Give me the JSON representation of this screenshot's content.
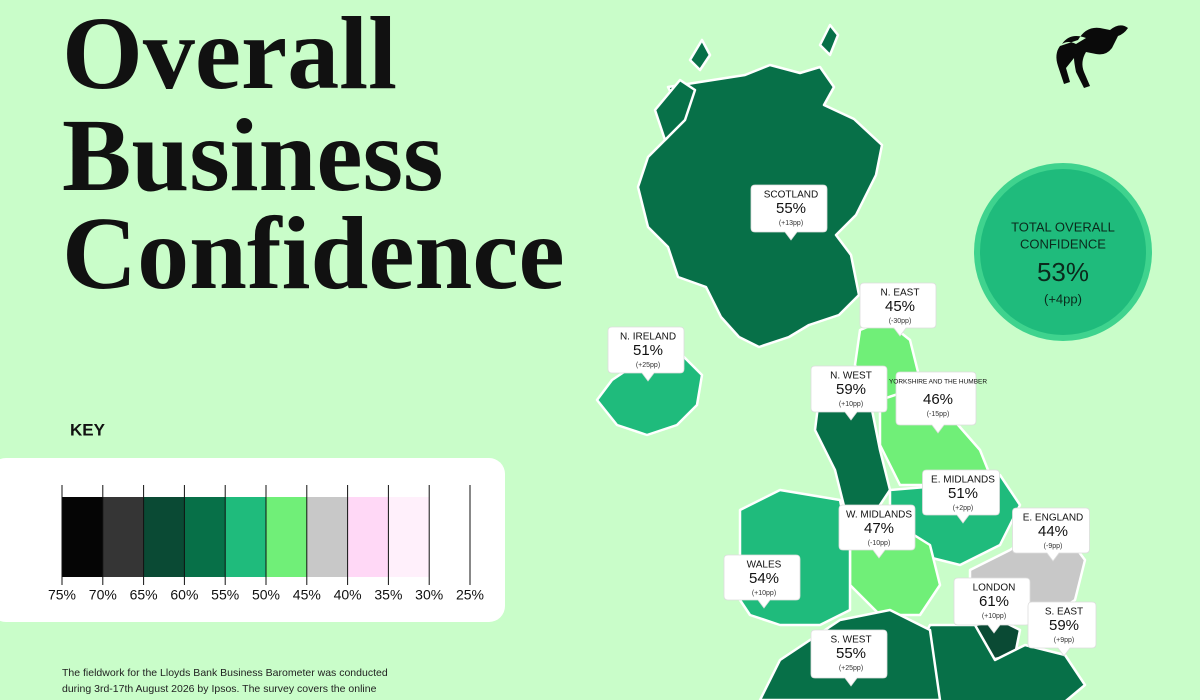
{
  "header": {
    "title_lines": [
      "Overall",
      "Business",
      "Confidence"
    ]
  },
  "key": {
    "title": "KEY",
    "colors": [
      "#050505",
      "#353535",
      "#0a4a34",
      "#077048",
      "#1fbb7c",
      "#70ef78",
      "#c8c8c8",
      "#ffd8f6",
      "#fff0fb",
      "#ffffff"
    ],
    "labels": [
      "75%",
      "70%",
      "65%",
      "60%",
      "55%",
      "50%",
      "45%",
      "40%",
      "35%",
      "30%",
      "25%"
    ]
  },
  "total": {
    "label_lines": [
      "TOTAL OVERALL",
      "CONFIDENCE"
    ],
    "value": "53%",
    "change": "(+4pp)"
  },
  "regions": [
    {
      "name": "SCOTLAND",
      "value": "55%",
      "change": "(+13pp)"
    },
    {
      "name": "N. IRELAND",
      "value": "51%",
      "change": "(+25pp)"
    },
    {
      "name": "N. EAST",
      "value": "45%",
      "change": "(-30pp)"
    },
    {
      "name": "N. WEST",
      "value": "59%",
      "change": "(+10pp)"
    },
    {
      "name": "YORKSHIRE AND THE HUMBER",
      "value": "46%",
      "change": "(-15pp)"
    },
    {
      "name": "E. MIDLANDS",
      "value": "51%",
      "change": "(+2pp)"
    },
    {
      "name": "W. MIDLANDS",
      "value": "47%",
      "change": "(-10pp)"
    },
    {
      "name": "E. ENGLAND",
      "value": "44%",
      "change": "(-9pp)"
    },
    {
      "name": "WALES",
      "value": "54%",
      "change": "(+10pp)"
    },
    {
      "name": "LONDON",
      "value": "61%",
      "change": "(+10pp)"
    },
    {
      "name": "S. EAST",
      "value": "59%",
      "change": "(+9pp)"
    },
    {
      "name": "S. WEST",
      "value": "55%",
      "change": "(+25pp)"
    }
  ],
  "footnote_lines": [
    "The fieldwork for the Lloyds Bank Business Barometer was conducted",
    "during 3rd-17th August 2026 by Ipsos. The survey covers the online"
  ]
}
